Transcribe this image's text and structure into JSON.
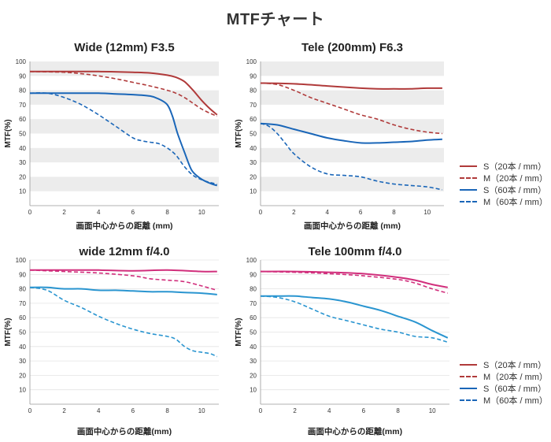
{
  "page": {
    "title": "MTFチャート"
  },
  "legends": [
    {
      "items": [
        {
          "label": "S（20本 / mm）"
        },
        {
          "label": "M（20本 / mm）"
        },
        {
          "label": "S（60本 / mm）"
        },
        {
          "label": "M（60本 / mm）"
        }
      ]
    },
    {
      "items": [
        {
          "label": "S（20本 / mm）"
        },
        {
          "label": "M（20本 / mm）"
        },
        {
          "label": "S（60本 / mm）"
        },
        {
          "label": "M（60本 / mm）"
        }
      ]
    }
  ],
  "chart_data": [
    {
      "type": "line",
      "title": "Wide (12mm) F3.5",
      "xlabel": "画面中心からの距離 (mm)",
      "ylabel": "MTF(%)",
      "xlim": [
        0,
        11
      ],
      "ylim": [
        0,
        100
      ],
      "xticks": [
        0,
        2,
        4,
        6,
        8,
        10
      ],
      "yticks": [
        10,
        20,
        30,
        40,
        50,
        60,
        70,
        80,
        90,
        100
      ],
      "bands": true,
      "series": [
        {
          "name": "S (20本/mm)",
          "color": "#B03A3A",
          "dashed": false,
          "x": [
            0,
            2,
            4,
            6,
            7,
            8,
            8.5,
            9,
            9.5,
            10,
            10.5,
            10.9
          ],
          "y": [
            93,
            93,
            93,
            92.5,
            92,
            90.5,
            89,
            86,
            80,
            73,
            67,
            63
          ]
        },
        {
          "name": "M (20本/mm)",
          "color": "#B03A3A",
          "dashed": true,
          "x": [
            0,
            2,
            3,
            4,
            5,
            6,
            7,
            8,
            8.5,
            9,
            9.5,
            10,
            10.5,
            10.9
          ],
          "y": [
            93,
            92.5,
            91.5,
            90,
            88,
            85.5,
            83,
            80,
            78,
            75,
            71,
            67,
            64,
            62
          ]
        },
        {
          "name": "S (60本/mm)",
          "color": "#1A66B8",
          "dashed": false,
          "x": [
            0,
            2,
            4,
            5,
            6,
            7,
            7.5,
            8,
            8.3,
            8.6,
            9,
            9.4,
            9.8,
            10.2,
            10.6,
            10.9
          ],
          "y": [
            78,
            78,
            78,
            77.5,
            77,
            76,
            74,
            70,
            62,
            50,
            37,
            25,
            20,
            17,
            15,
            14
          ]
        },
        {
          "name": "M (60本/mm)",
          "color": "#1A66B8",
          "dashed": true,
          "x": [
            0,
            1,
            2,
            3,
            4,
            5,
            6,
            6.5,
            7,
            7.5,
            8,
            8.5,
            9,
            9.5,
            10,
            10.5,
            10.9
          ],
          "y": [
            78,
            78,
            75,
            70,
            63,
            55,
            47,
            45,
            44,
            43,
            40,
            35,
            27,
            21,
            18,
            16,
            15
          ]
        }
      ]
    },
    {
      "type": "line",
      "title": "Tele (200mm) F6.3",
      "xlabel": "画面中心からの距離 (mm)",
      "ylabel": "MTF(%)",
      "xlim": [
        0,
        11
      ],
      "ylim": [
        0,
        100
      ],
      "xticks": [
        0,
        2,
        4,
        6,
        8,
        10
      ],
      "yticks": [
        10,
        20,
        30,
        40,
        50,
        60,
        70,
        80,
        90,
        100
      ],
      "bands": true,
      "series": [
        {
          "name": "S (20本/mm)",
          "color": "#B03A3A",
          "dashed": false,
          "x": [
            0,
            2,
            4,
            6,
            7,
            8,
            9,
            10,
            10.9
          ],
          "y": [
            85,
            84.5,
            83,
            81.5,
            81,
            81,
            81,
            81.5,
            81.5
          ]
        },
        {
          "name": "M (20本/mm)",
          "color": "#B03A3A",
          "dashed": true,
          "x": [
            0,
            1,
            2,
            3,
            4,
            5,
            6,
            7,
            8,
            9,
            10,
            10.9
          ],
          "y": [
            85,
            84,
            80,
            75,
            71,
            67,
            63,
            60,
            56,
            53,
            51,
            50
          ]
        },
        {
          "name": "S (60本/mm)",
          "color": "#1A66B8",
          "dashed": false,
          "x": [
            0,
            1,
            2,
            3,
            4,
            5,
            6,
            7,
            8,
            9,
            10,
            10.9
          ],
          "y": [
            57,
            56,
            53,
            50,
            47,
            45,
            43.5,
            43.5,
            44,
            44.5,
            45.5,
            46
          ]
        },
        {
          "name": "M (60本/mm)",
          "color": "#1A66B8",
          "dashed": true,
          "x": [
            0,
            0.5,
            1,
            1.5,
            2,
            3,
            4,
            5,
            6,
            7,
            8,
            9,
            10,
            10.9
          ],
          "y": [
            57,
            55,
            50,
            43,
            36,
            27,
            22,
            21,
            20,
            17,
            15,
            14,
            13,
            11
          ]
        }
      ]
    },
    {
      "type": "line",
      "title": "wide 12mm f/4.0",
      "xlabel": "画面中心からの距離(mm)",
      "ylabel": "MTF(%)",
      "xlim": [
        0,
        11
      ],
      "ylim": [
        0,
        100
      ],
      "xticks": [
        0,
        2,
        4,
        6,
        8,
        10
      ],
      "yticks": [
        10,
        20,
        30,
        40,
        50,
        60,
        70,
        80,
        90,
        100
      ],
      "bands": false,
      "series": [
        {
          "name": "S (20本/mm)",
          "color": "#D12F7C",
          "dashed": false,
          "x": [
            0,
            2,
            4,
            6,
            8,
            10,
            10.9
          ],
          "y": [
            93,
            93,
            93,
            92.5,
            93,
            92,
            92
          ]
        },
        {
          "name": "M (20本/mm)",
          "color": "#D12F7C",
          "dashed": true,
          "x": [
            0,
            2,
            4,
            6,
            7,
            8,
            9,
            10,
            10.9
          ],
          "y": [
            93,
            92,
            91,
            89,
            87,
            86,
            85,
            82,
            79
          ]
        },
        {
          "name": "S (60本/mm)",
          "color": "#2A95D0",
          "dashed": false,
          "x": [
            0,
            1,
            2,
            3,
            4,
            5,
            6,
            7,
            8,
            9,
            10,
            10.9
          ],
          "y": [
            81,
            81,
            80,
            80,
            79,
            79,
            78.5,
            78,
            78,
            77.5,
            77,
            76
          ]
        },
        {
          "name": "M (60本/mm)",
          "color": "#2A95D0",
          "dashed": true,
          "x": [
            0,
            1,
            2,
            3,
            4,
            5,
            6,
            7,
            8,
            8.5,
            9,
            9.5,
            10,
            10.5,
            10.9
          ],
          "y": [
            81,
            79,
            72,
            67,
            61,
            56,
            52,
            49,
            47,
            45,
            40,
            37,
            36,
            35,
            33
          ]
        }
      ]
    },
    {
      "type": "line",
      "title": "Tele 100mm f/4.0",
      "xlabel": "画面中心からの距離(mm)",
      "ylabel": "MTF(%)",
      "xlim": [
        0,
        11
      ],
      "ylim": [
        0,
        100
      ],
      "xticks": [
        0,
        2,
        4,
        6,
        8,
        10
      ],
      "yticks": [
        10,
        20,
        30,
        40,
        50,
        60,
        70,
        80,
        90,
        100
      ],
      "bands": false,
      "series": [
        {
          "name": "S (20本/mm)",
          "color": "#D12F7C",
          "dashed": false,
          "x": [
            0,
            2,
            4,
            6,
            8,
            9,
            10,
            10.9
          ],
          "y": [
            92,
            92,
            91.5,
            90.5,
            88,
            86,
            83,
            81
          ]
        },
        {
          "name": "M (20本/mm)",
          "color": "#D12F7C",
          "dashed": true,
          "x": [
            0,
            2,
            4,
            6,
            8,
            9,
            10,
            10.9
          ],
          "y": [
            92,
            91.5,
            90.5,
            89,
            86.5,
            84,
            80,
            77
          ]
        },
        {
          "name": "S (60本/mm)",
          "color": "#2A95D0",
          "dashed": false,
          "x": [
            0,
            1,
            2,
            3,
            4,
            5,
            6,
            7,
            8,
            9,
            10,
            10.9
          ],
          "y": [
            75,
            75,
            75,
            74,
            73,
            71,
            68,
            65,
            61,
            57,
            51,
            46
          ]
        },
        {
          "name": "M (60本/mm)",
          "color": "#2A95D0",
          "dashed": true,
          "x": [
            0,
            1,
            2,
            3,
            4,
            5,
            6,
            7,
            8,
            9,
            10,
            10.9
          ],
          "y": [
            75,
            74,
            71,
            66,
            61,
            58,
            55,
            52,
            50,
            47,
            46,
            43
          ]
        }
      ]
    }
  ]
}
